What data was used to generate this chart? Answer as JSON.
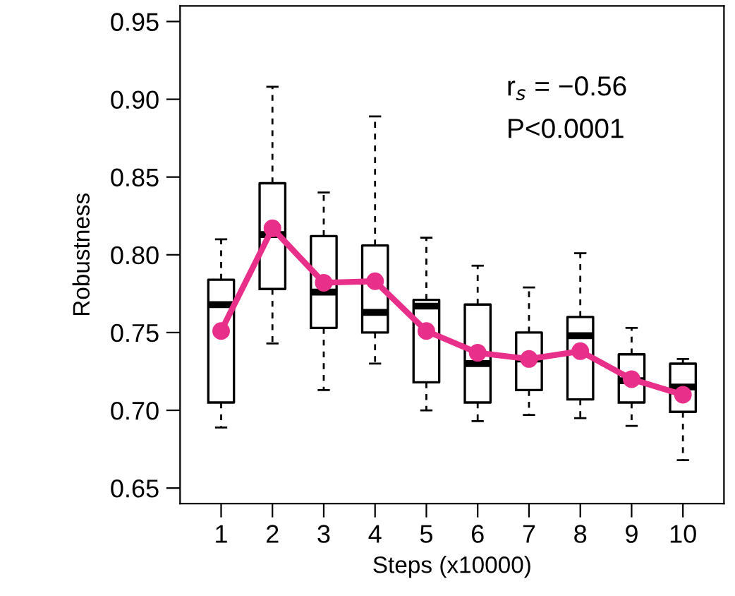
{
  "chart_data": {
    "type": "box",
    "xlabel": "Steps (x10000)",
    "ylabel": "Robustness",
    "categories": [
      "1",
      "2",
      "3",
      "4",
      "5",
      "6",
      "7",
      "8",
      "9",
      "10"
    ],
    "boxes": [
      {
        "low": 0.689,
        "q1": 0.705,
        "median": 0.768,
        "q3": 0.784,
        "high": 0.81
      },
      {
        "low": 0.743,
        "q1": 0.778,
        "median": 0.813,
        "q3": 0.846,
        "high": 0.908
      },
      {
        "low": 0.713,
        "q1": 0.753,
        "median": 0.776,
        "q3": 0.812,
        "high": 0.84
      },
      {
        "low": 0.73,
        "q1": 0.75,
        "median": 0.763,
        "q3": 0.806,
        "high": 0.889
      },
      {
        "low": 0.7,
        "q1": 0.718,
        "median": 0.767,
        "q3": 0.771,
        "high": 0.811
      },
      {
        "low": 0.693,
        "q1": 0.705,
        "median": 0.73,
        "q3": 0.768,
        "high": 0.793
      },
      {
        "low": 0.697,
        "q1": 0.713,
        "median": 0.733,
        "q3": 0.75,
        "high": 0.779
      },
      {
        "low": 0.695,
        "q1": 0.707,
        "median": 0.748,
        "q3": 0.76,
        "high": 0.801
      },
      {
        "low": 0.69,
        "q1": 0.705,
        "median": 0.719,
        "q3": 0.736,
        "high": 0.753
      },
      {
        "low": 0.668,
        "q1": 0.699,
        "median": 0.715,
        "q3": 0.73,
        "high": 0.733
      }
    ],
    "series": [
      {
        "type": "line",
        "color": "#e8308a",
        "marker": "circle",
        "values": [
          0.751,
          0.817,
          0.782,
          0.783,
          0.751,
          0.737,
          0.733,
          0.738,
          0.72,
          0.71
        ]
      }
    ],
    "ylim": [
      0.64,
      0.96
    ],
    "yticks": [
      {
        "value": 0.65,
        "label": "0.65"
      },
      {
        "value": 0.7,
        "label": "0.70"
      },
      {
        "value": 0.75,
        "label": "0.75"
      },
      {
        "value": 0.8,
        "label": "0.80"
      },
      {
        "value": 0.85,
        "label": "0.85"
      },
      {
        "value": 0.9,
        "label": "0.90"
      },
      {
        "value": 0.95,
        "label": "0.95"
      }
    ],
    "annotations": [
      "r$_{s}$ = −0.56",
      "P<0.0001"
    ],
    "grid": false,
    "legend": false
  }
}
